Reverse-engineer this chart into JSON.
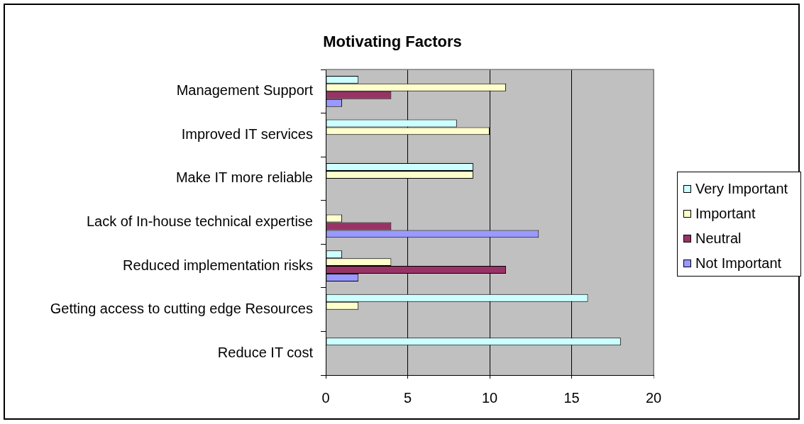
{
  "chart_data": {
    "type": "bar",
    "orientation": "horizontal",
    "title": "Motivating Factors",
    "categories": [
      "Management Support",
      "Improved IT services",
      "Make IT more reliable",
      "Lack of In-house technical expertise",
      "Reduced implementation risks",
      "Getting access to cutting edge Resources",
      "Reduce IT cost"
    ],
    "series": [
      {
        "name": "Very Important",
        "color": "#ccffff",
        "values": [
          2,
          8,
          9,
          null,
          1,
          16,
          18
        ]
      },
      {
        "name": "Important",
        "color": "#ffffcc",
        "values": [
          11,
          10,
          9,
          1,
          4,
          2,
          null
        ]
      },
      {
        "name": "Neutral",
        "color": "#993366",
        "values": [
          4,
          null,
          null,
          4,
          11,
          null,
          null
        ]
      },
      {
        "name": "Not Important",
        "color": "#9999ff",
        "values": [
          1,
          null,
          null,
          13,
          2,
          null,
          null
        ]
      }
    ],
    "xlim": [
      0,
      20
    ],
    "xticks": [
      0,
      5,
      10,
      15,
      20
    ],
    "grid": "x",
    "legend": "right"
  }
}
